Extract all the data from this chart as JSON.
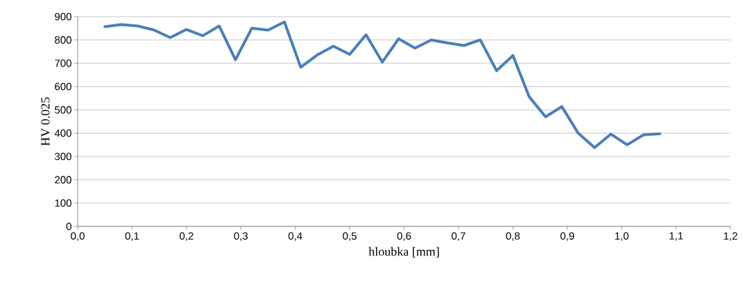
{
  "chart_data": {
    "type": "line",
    "xlabel": "hloubka [mm]",
    "ylabel": "HV 0.025",
    "x": [
      0.05,
      0.08,
      0.11,
      0.14,
      0.17,
      0.2,
      0.23,
      0.26,
      0.29,
      0.32,
      0.35,
      0.38,
      0.41,
      0.44,
      0.47,
      0.5,
      0.53,
      0.56,
      0.59,
      0.62,
      0.65,
      0.68,
      0.71,
      0.74,
      0.77,
      0.8,
      0.83,
      0.86,
      0.89,
      0.92,
      0.95,
      0.98,
      1.01,
      1.04,
      1.07
    ],
    "series": [
      {
        "color": "#4a7ebb",
        "values": [
          857,
          866,
          860,
          843,
          810,
          845,
          818,
          860,
          715,
          850,
          842,
          877,
          683,
          735,
          773,
          738,
          822,
          705,
          805,
          765,
          800,
          787,
          776,
          800,
          668,
          733,
          556,
          470,
          514,
          400,
          338,
          396,
          350,
          393,
          397
        ]
      }
    ],
    "xlim": [
      0,
      1.2
    ],
    "xticks": [
      {
        "value": 0,
        "label": "0,0"
      },
      {
        "value": 0.1,
        "label": "0,1"
      },
      {
        "value": 0.2,
        "label": "0,2"
      },
      {
        "value": 0.3,
        "label": "0,3"
      },
      {
        "value": 0.4,
        "label": "0,4"
      },
      {
        "value": 0.5,
        "label": "0,5"
      },
      {
        "value": 0.6,
        "label": "0,6"
      },
      {
        "value": 0.7,
        "label": "0,7"
      },
      {
        "value": 0.8,
        "label": "0,8"
      },
      {
        "value": 0.9,
        "label": "0,9"
      },
      {
        "value": 1.0,
        "label": "1,0"
      },
      {
        "value": 1.1,
        "label": "1,1"
      },
      {
        "value": 1.2,
        "label": "1,2"
      }
    ],
    "ylim": [
      0,
      900
    ],
    "yticks": [
      0,
      100,
      200,
      300,
      400,
      500,
      600,
      700,
      800,
      900
    ],
    "grid": "y",
    "marker": "none",
    "line_style": "solid"
  }
}
